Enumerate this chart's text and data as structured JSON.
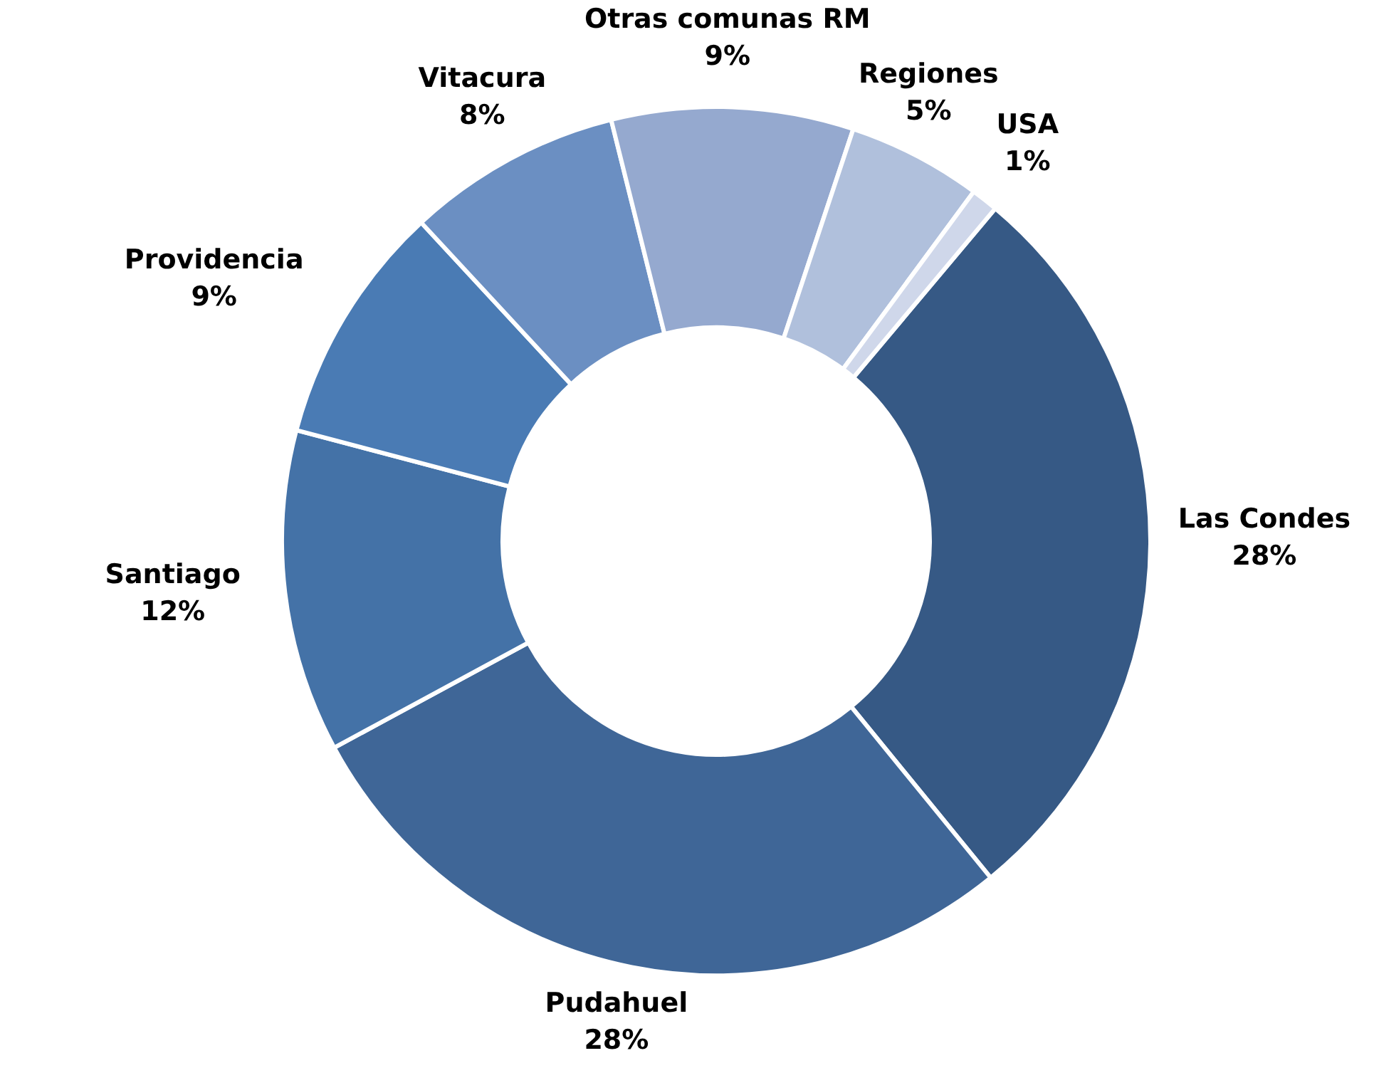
{
  "chart_data": {
    "type": "donut",
    "categories": [
      "Las Condes",
      "Pudahuel",
      "Santiago",
      "Providencia",
      "Vitacura",
      "Otras comunas RM",
      "Regiones",
      "USA"
    ],
    "values": [
      28,
      28,
      12,
      9,
      8,
      9,
      5,
      1
    ],
    "value_labels": [
      "28%",
      "28%",
      "12%",
      "9%",
      "8%",
      "9%",
      "5%",
      "1%"
    ],
    "colors": [
      "#365985",
      "#3f6697",
      "#4472a7",
      "#4a7bb4",
      "#6b8fc2",
      "#95a9cf",
      "#b0c0dc",
      "#cfd7ea"
    ],
    "legend": false
  }
}
